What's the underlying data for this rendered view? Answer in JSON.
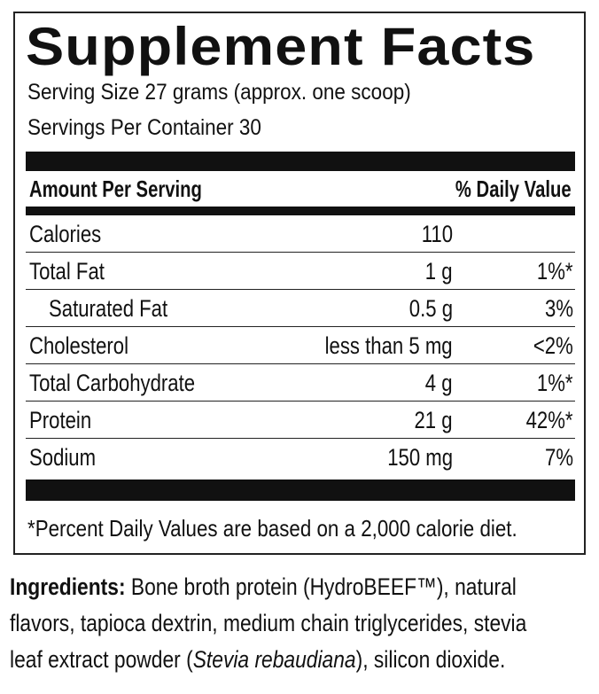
{
  "title": "Supplement Facts",
  "serving_size": "Serving Size 27 grams (approx. one scoop)",
  "servings_per_container": "Servings Per Container 30",
  "header": {
    "amount_per_serving": "Amount Per Serving",
    "daily_value": "% Daily Value"
  },
  "nutrients": [
    {
      "name": "Calories",
      "amount": "110",
      "dv": ""
    },
    {
      "name": "Total Fat",
      "amount": "1 g",
      "dv": "1%*"
    },
    {
      "name": "Saturated Fat",
      "amount": "0.5 g",
      "dv": "3%",
      "indent": true
    },
    {
      "name": "Cholesterol",
      "amount": "less than 5 mg",
      "dv": "<2%"
    },
    {
      "name": "Total Carbohydrate",
      "amount": "4 g",
      "dv": "1%*"
    },
    {
      "name": "Protein",
      "amount": "21 g",
      "dv": "42%*"
    },
    {
      "name": "Sodium",
      "amount": "150 mg",
      "dv": "7%"
    }
  ],
  "footnote": "*Percent Daily Values are based on a 2,000 calorie diet.",
  "ingredients": {
    "label": "Ingredients:",
    "text_before": " Bone broth protein (HydroBEEF™), natural flavors, tapioca dextrin, medium chain triglycerides, stevia leaf extract powder (",
    "italic": "Stevia rebaudiana",
    "text_after": "), silicon dioxide."
  }
}
